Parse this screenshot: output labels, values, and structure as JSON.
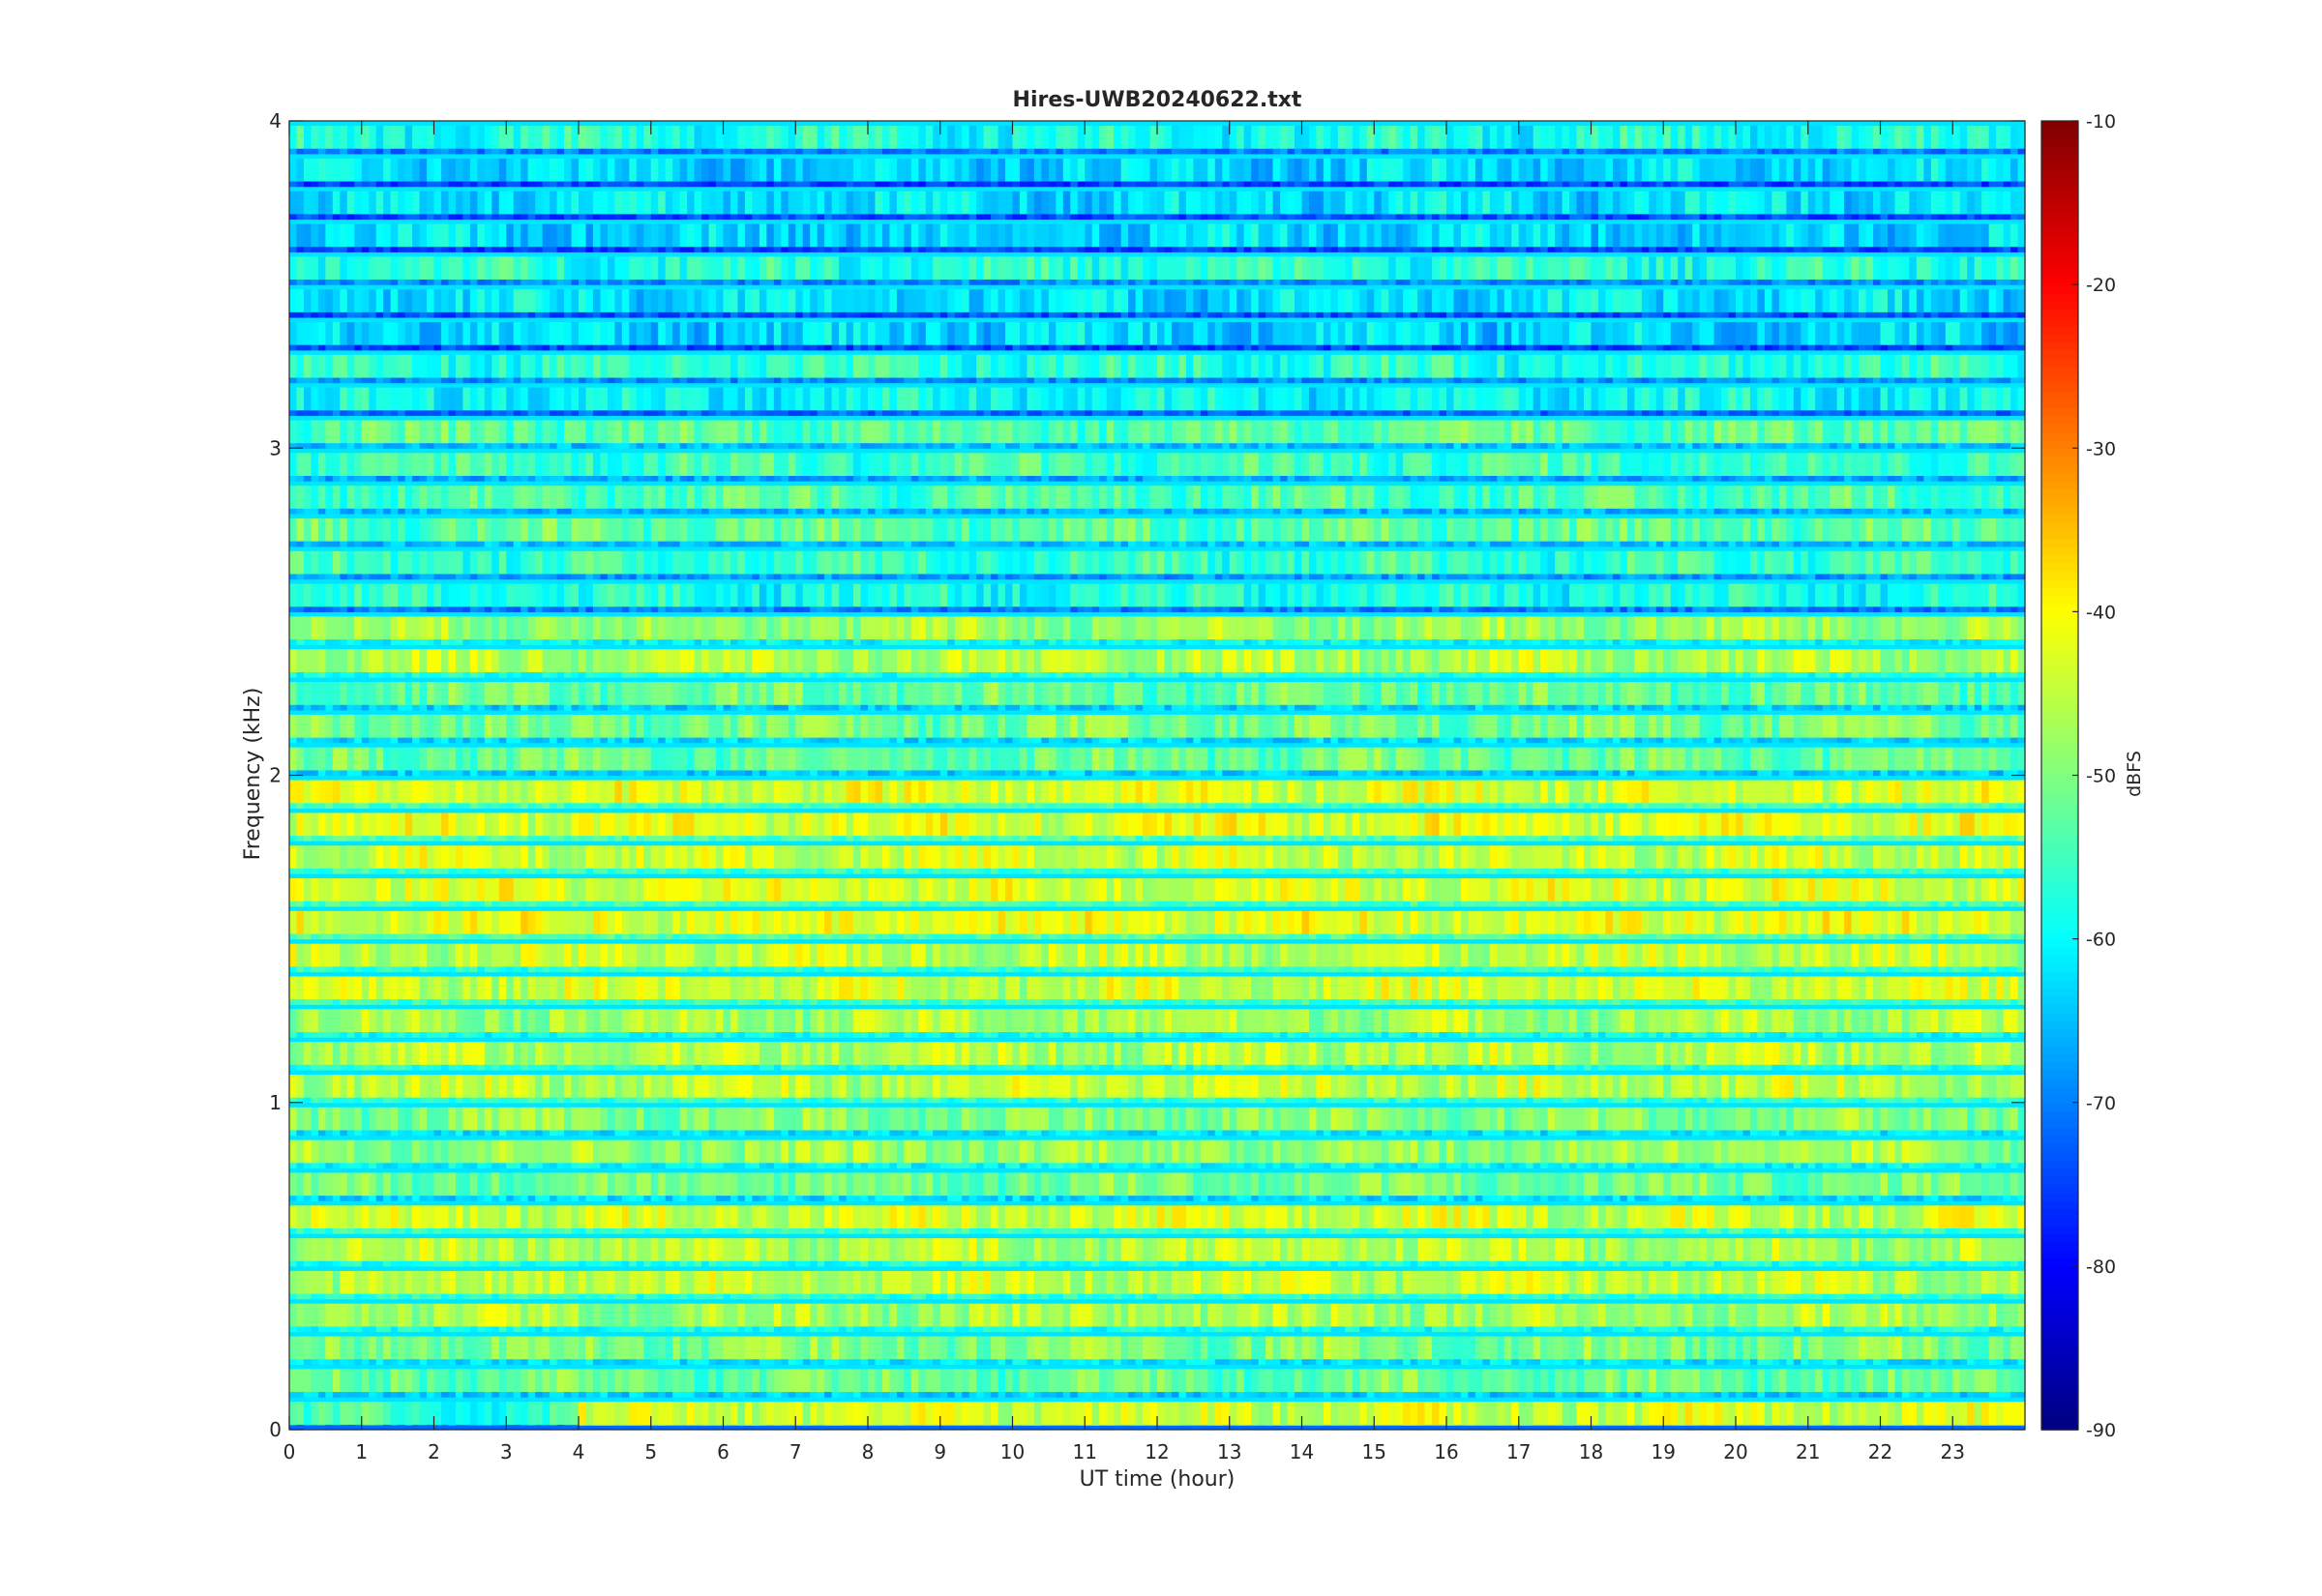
{
  "chart_data": {
    "type": "heatmap",
    "title": "Hires-UWB20240622.txt",
    "xlabel": "UT time (hour)",
    "ylabel": "Frequency (kHz)",
    "xlim": [
      0,
      24
    ],
    "ylim": [
      0,
      4
    ],
    "x_ticks": [
      "0",
      "1",
      "2",
      "3",
      "4",
      "5",
      "6",
      "7",
      "8",
      "9",
      "10",
      "11",
      "12",
      "13",
      "14",
      "15",
      "16",
      "17",
      "18",
      "19",
      "20",
      "21",
      "22",
      "23"
    ],
    "y_ticks": [
      "0",
      "1",
      "2",
      "3",
      "4"
    ],
    "colorbar": {
      "label": "dBFS",
      "range": [
        -90,
        -10
      ],
      "ticks": [
        "-10",
        "-20",
        "-30",
        "-40",
        "-50",
        "-60",
        "-70",
        "-80",
        "-90"
      ],
      "colormap": "jet"
    },
    "frequency_bands_khz": [
      {
        "f": 0.05,
        "level_dbfs": -44,
        "note": "weaker (-56) before 4 UT"
      },
      {
        "f": 0.15,
        "level_dbfs": -52
      },
      {
        "f": 0.25,
        "level_dbfs": -50
      },
      {
        "f": 0.35,
        "level_dbfs": -47
      },
      {
        "f": 0.45,
        "level_dbfs": -45
      },
      {
        "f": 0.55,
        "level_dbfs": -46
      },
      {
        "f": 0.65,
        "level_dbfs": -44
      },
      {
        "f": 0.75,
        "level_dbfs": -51
      },
      {
        "f": 0.85,
        "level_dbfs": -48
      },
      {
        "f": 0.95,
        "level_dbfs": -50
      },
      {
        "f": 1.05,
        "level_dbfs": -45
      },
      {
        "f": 1.15,
        "level_dbfs": -46
      },
      {
        "f": 1.25,
        "level_dbfs": -47
      },
      {
        "f": 1.35,
        "level_dbfs": -44
      },
      {
        "f": 1.45,
        "level_dbfs": -45
      },
      {
        "f": 1.55,
        "level_dbfs": -42
      },
      {
        "f": 1.65,
        "level_dbfs": -43
      },
      {
        "f": 1.75,
        "level_dbfs": -44
      },
      {
        "f": 1.85,
        "level_dbfs": -42
      },
      {
        "f": 1.95,
        "level_dbfs": -43
      },
      {
        "f": 2.05,
        "level_dbfs": -52
      },
      {
        "f": 2.15,
        "level_dbfs": -51
      },
      {
        "f": 2.25,
        "level_dbfs": -52
      },
      {
        "f": 2.35,
        "level_dbfs": -46
      },
      {
        "f": 2.45,
        "level_dbfs": -48
      },
      {
        "f": 2.55,
        "level_dbfs": -58
      },
      {
        "f": 2.65,
        "level_dbfs": -56
      },
      {
        "f": 2.75,
        "level_dbfs": -53
      },
      {
        "f": 2.85,
        "level_dbfs": -54
      },
      {
        "f": 2.95,
        "level_dbfs": -55
      },
      {
        "f": 3.05,
        "level_dbfs": -53
      },
      {
        "f": 3.15,
        "level_dbfs": -60
      },
      {
        "f": 3.25,
        "level_dbfs": -57
      },
      {
        "f": 3.35,
        "level_dbfs": -63
      },
      {
        "f": 3.45,
        "level_dbfs": -62
      },
      {
        "f": 3.55,
        "level_dbfs": -57
      },
      {
        "f": 3.65,
        "level_dbfs": -63
      },
      {
        "f": 3.75,
        "level_dbfs": -62
      },
      {
        "f": 3.85,
        "level_dbfs": -63
      },
      {
        "f": 3.95,
        "level_dbfs": -58
      }
    ]
  }
}
